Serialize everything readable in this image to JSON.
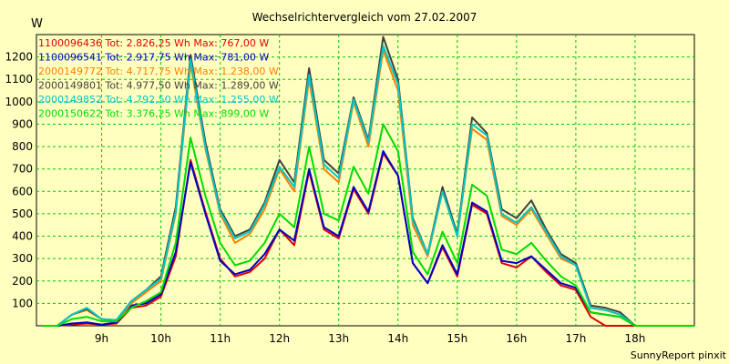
{
  "chart_data": {
    "type": "line",
    "title": "Wechselrichtervergleich vom 27.02.2007",
    "ylabel": "W",
    "xlabel": "",
    "footer": "SunnyReport pinxit",
    "ylim": [
      0,
      1300
    ],
    "yticks": [
      100,
      200,
      300,
      400,
      500,
      600,
      700,
      800,
      900,
      1000,
      1100,
      1200
    ],
    "xlim": [
      7.9,
      19.0
    ],
    "xticks": [
      {
        "value": 9,
        "label": "9h"
      },
      {
        "value": 10,
        "label": "10h"
      },
      {
        "value": 11,
        "label": "11h"
      },
      {
        "value": 12,
        "label": "12h"
      },
      {
        "value": 13,
        "label": "13h"
      },
      {
        "value": 14,
        "label": "14h"
      },
      {
        "value": 15,
        "label": "15h"
      },
      {
        "value": 16,
        "label": "16h"
      },
      {
        "value": 17,
        "label": "17h"
      },
      {
        "value": 18,
        "label": "18h"
      }
    ],
    "grid": true,
    "legend_position": "top-left",
    "x": [
      8.0,
      8.25,
      8.5,
      8.75,
      9.0,
      9.25,
      9.5,
      9.75,
      10.0,
      10.25,
      10.5,
      10.75,
      11.0,
      11.25,
      11.5,
      11.75,
      12.0,
      12.25,
      12.5,
      12.75,
      13.0,
      13.25,
      13.5,
      13.75,
      14.0,
      14.25,
      14.5,
      14.75,
      15.0,
      15.25,
      15.5,
      15.75,
      16.0,
      16.25,
      16.5,
      16.75,
      17.0,
      17.25,
      17.5,
      17.75,
      18.0,
      18.25,
      18.5,
      18.75,
      19.0
    ],
    "series": [
      {
        "name": "1100096436",
        "legend_text": "1100096436 Tot: 2.826,25 Wh Max: 767,00 W",
        "color": "#e00000",
        "values": [
          0,
          0,
          5,
          10,
          5,
          10,
          80,
          90,
          130,
          310,
          740,
          510,
          300,
          220,
          240,
          300,
          430,
          360,
          690,
          430,
          390,
          610,
          500,
          770,
          670,
          280,
          190,
          350,
          220,
          540,
          500,
          280,
          260,
          310,
          240,
          180,
          160,
          40,
          0,
          0,
          0,
          0,
          0,
          0,
          0
        ]
      },
      {
        "name": "1100096541",
        "legend_text": "1100096541 Tot: 2.917,75 Wh Max: 781,00 W",
        "color": "#0000c8",
        "values": [
          0,
          0,
          10,
          15,
          5,
          15,
          90,
          100,
          140,
          330,
          730,
          500,
          290,
          230,
          250,
          320,
          430,
          380,
          700,
          440,
          400,
          620,
          510,
          780,
          670,
          280,
          190,
          360,
          230,
          550,
          510,
          290,
          280,
          310,
          250,
          190,
          170,
          60,
          50,
          40,
          0,
          0,
          0,
          0,
          0
        ]
      },
      {
        "name": "2000149772",
        "legend_text": "2000149772 Tot: 4.717,75 Wh Max: 1.238,00 W",
        "color": "#ff8000",
        "values": [
          0,
          0,
          50,
          70,
          30,
          20,
          100,
          150,
          200,
          500,
          1170,
          790,
          500,
          370,
          410,
          520,
          700,
          600,
          1100,
          700,
          640,
          1000,
          800,
          1230,
          1050,
          450,
          310,
          600,
          400,
          880,
          830,
          490,
          450,
          520,
          410,
          300,
          270,
          80,
          70,
          50,
          0,
          0,
          0,
          0,
          0
        ]
      },
      {
        "name": "2000149801",
        "legend_text": "2000149801 Tot: 4.977,50 Wh Max: 1.289,00 W",
        "color": "#404040",
        "values": [
          0,
          0,
          50,
          75,
          30,
          25,
          110,
          160,
          220,
          530,
          1210,
          820,
          520,
          400,
          430,
          550,
          740,
          640,
          1150,
          740,
          680,
          1020,
          830,
          1290,
          1100,
          480,
          320,
          620,
          410,
          930,
          860,
          520,
          480,
          560,
          430,
          320,
          280,
          90,
          80,
          60,
          0,
          0,
          0,
          0,
          0
        ]
      },
      {
        "name": "2000149852",
        "legend_text": "2000149852 Tot: 4.792,50 Wh Max: 1.255,00 W",
        "color": "#00c8c8",
        "values": [
          0,
          0,
          50,
          80,
          30,
          25,
          110,
          160,
          210,
          510,
          1190,
          800,
          510,
          390,
          420,
          540,
          710,
          620,
          1120,
          720,
          660,
          1010,
          820,
          1250,
          1080,
          470,
          320,
          600,
          400,
          900,
          850,
          500,
          460,
          530,
          420,
          310,
          270,
          80,
          70,
          50,
          0,
          0,
          0,
          0,
          0
        ]
      },
      {
        "name": "2000150622",
        "legend_text": "2000150622 Tot: 3.376,25 Wh Max: 899,00 W",
        "color": "#00dc00",
        "values": [
          0,
          0,
          30,
          40,
          20,
          20,
          80,
          110,
          150,
          370,
          840,
          580,
          370,
          270,
          290,
          370,
          500,
          440,
          800,
          500,
          470,
          710,
          590,
          900,
          780,
          330,
          230,
          420,
          280,
          630,
          580,
          340,
          320,
          370,
          290,
          220,
          180,
          60,
          50,
          40,
          0,
          0,
          0,
          0,
          0
        ]
      }
    ]
  }
}
